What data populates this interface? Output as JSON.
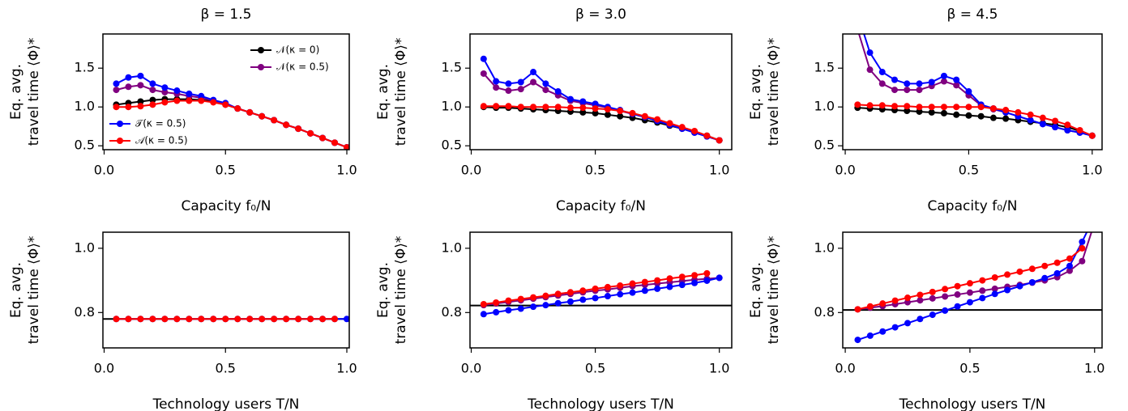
{
  "chart_data": [
    {
      "type": "line",
      "title": "β = 1.5",
      "xlabel": "Capacity f₀/N",
      "ylabel": [
        "Eq. avg.",
        "travel time ⟨Φ⟩*"
      ],
      "x": [
        0.05,
        0.1,
        0.15,
        0.2,
        0.25,
        0.3,
        0.35,
        0.4,
        0.45,
        0.5,
        0.55,
        0.6,
        0.65,
        0.7,
        0.75,
        0.8,
        0.85,
        0.9,
        0.95,
        1.0
      ],
      "series": [
        {
          "name": "𝒩(κ = 0)",
          "color": "#000000",
          "values": [
            1.03,
            1.05,
            1.07,
            1.09,
            1.1,
            1.1,
            1.1,
            1.09,
            1.07,
            1.03,
            0.98,
            0.93,
            0.88,
            0.83,
            0.77,
            0.72,
            0.66,
            0.6,
            0.54,
            0.48
          ]
        },
        {
          "name": "𝒩(κ = 0.5)",
          "color": "#800080",
          "values": [
            1.22,
            1.26,
            1.28,
            1.22,
            1.19,
            1.17,
            1.14,
            1.12,
            1.08,
            1.04,
            0.98,
            0.93,
            0.88,
            0.83,
            0.77,
            0.72,
            0.66,
            0.6,
            0.54,
            0.48
          ]
        },
        {
          "name": "𝒯(κ = 0.5)",
          "color": "#0000ff",
          "values": [
            1.3,
            1.38,
            1.4,
            1.3,
            1.25,
            1.21,
            1.17,
            1.14,
            1.09,
            1.05,
            0.98,
            0.93,
            0.88,
            0.83,
            0.77,
            0.72,
            0.66,
            0.6,
            0.54,
            0.48
          ]
        },
        {
          "name": "𝒜(κ = 0.5)",
          "color": "#ff0000",
          "values": [
            1.0,
            1.0,
            1.01,
            1.03,
            1.06,
            1.08,
            1.08,
            1.08,
            1.06,
            1.03,
            0.98,
            0.93,
            0.88,
            0.83,
            0.77,
            0.72,
            0.66,
            0.6,
            0.54,
            0.48
          ]
        }
      ],
      "xlim": [
        -0.005,
        1.01
      ],
      "xticks": [
        {
          "value": 0,
          "label": "0.0"
        },
        0.5,
        {
          "value": 1,
          "label": "1.0"
        }
      ],
      "ylim": [
        0.45,
        1.94
      ],
      "yticks": [
        0.5,
        {
          "value": 1,
          "label": "1.0"
        },
        1.5
      ]
    },
    {
      "type": "line",
      "title": "β = 3.0",
      "xlabel": "Capacity f₀/N",
      "ylabel": [
        "Eq. avg.",
        "travel time ⟨Φ⟩*"
      ],
      "x": [
        0.05,
        0.1,
        0.15,
        0.2,
        0.25,
        0.3,
        0.35,
        0.4,
        0.45,
        0.5,
        0.55,
        0.6,
        0.65,
        0.7,
        0.75,
        0.8,
        0.85,
        0.9,
        0.95,
        1.0
      ],
      "series": [
        {
          "color": "#000000",
          "values": [
            1.0,
            0.99,
            0.99,
            0.98,
            0.97,
            0.96,
            0.95,
            0.94,
            0.93,
            0.92,
            0.9,
            0.88,
            0.86,
            0.83,
            0.8,
            0.76,
            0.72,
            0.68,
            0.63,
            0.57
          ]
        },
        {
          "color": "#800080",
          "values": [
            1.43,
            1.25,
            1.21,
            1.23,
            1.32,
            1.22,
            1.15,
            1.08,
            1.05,
            1.02,
            0.99,
            0.95,
            0.91,
            0.87,
            0.82,
            0.77,
            0.72,
            0.67,
            0.62,
            0.57
          ]
        },
        {
          "color": "#0000ff",
          "values": [
            1.62,
            1.33,
            1.3,
            1.32,
            1.45,
            1.3,
            1.2,
            1.1,
            1.07,
            1.04,
            1.0,
            0.96,
            0.91,
            0.87,
            0.82,
            0.77,
            0.72,
            0.67,
            0.62,
            0.57
          ]
        },
        {
          "color": "#ff0000",
          "values": [
            1.01,
            1.01,
            1.01,
            1.0,
            1.0,
            1.0,
            1.0,
            0.99,
            0.99,
            0.98,
            0.97,
            0.95,
            0.92,
            0.88,
            0.84,
            0.79,
            0.74,
            0.69,
            0.63,
            0.57
          ]
        }
      ],
      "xlim": [
        -0.005,
        1.05
      ],
      "xticks": [
        {
          "value": 0,
          "label": "0.0"
        },
        0.5,
        {
          "value": 1,
          "label": "1.0"
        }
      ],
      "ylim": [
        0.45,
        1.94
      ],
      "yticks": [
        0.5,
        {
          "value": 1,
          "label": "1.0"
        },
        1.5
      ]
    },
    {
      "type": "line",
      "title": "β = 4.5",
      "xlabel": "Capacity f₀/N",
      "ylabel": [
        "Eq. avg.",
        "travel time ⟨Φ⟩*"
      ],
      "x": [
        0.05,
        0.1,
        0.15,
        0.2,
        0.25,
        0.3,
        0.35,
        0.4,
        0.45,
        0.5,
        0.55,
        0.6,
        0.65,
        0.7,
        0.75,
        0.8,
        0.85,
        0.9,
        0.95,
        1.0
      ],
      "series": [
        {
          "color": "#000000",
          "values": [
            0.99,
            0.98,
            0.97,
            0.96,
            0.95,
            0.94,
            0.93,
            0.92,
            0.9,
            0.89,
            0.88,
            0.86,
            0.85,
            0.83,
            0.81,
            0.79,
            0.77,
            0.74,
            0.69,
            0.63
          ]
        },
        {
          "color": "#800080",
          "values": [
            2.0,
            1.48,
            1.3,
            1.22,
            1.22,
            1.22,
            1.27,
            1.33,
            1.28,
            1.15,
            1.02,
            0.97,
            0.93,
            0.88,
            0.83,
            0.78,
            0.74,
            0.7,
            0.67,
            0.63
          ]
        },
        {
          "color": "#0000ff",
          "values": [
            2.2,
            1.7,
            1.45,
            1.35,
            1.3,
            1.3,
            1.32,
            1.4,
            1.35,
            1.2,
            1.03,
            0.98,
            0.93,
            0.88,
            0.83,
            0.78,
            0.74,
            0.7,
            0.67,
            0.63
          ]
        },
        {
          "color": "#ff0000",
          "values": [
            1.03,
            1.02,
            1.02,
            1.01,
            1.01,
            1.0,
            1.0,
            1.0,
            1.0,
            1.0,
            1.0,
            0.98,
            0.96,
            0.93,
            0.9,
            0.86,
            0.82,
            0.77,
            0.7,
            0.63
          ]
        }
      ],
      "xlim": [
        -0.01,
        1.04
      ],
      "xticks": [
        {
          "value": 0,
          "label": "0.0"
        },
        0.5,
        {
          "value": 1,
          "label": "1.0"
        }
      ],
      "ylim": [
        0.45,
        1.94
      ],
      "yticks": [
        0.5,
        {
          "value": 1,
          "label": "1.0"
        },
        1.5
      ]
    },
    {
      "type": "line",
      "xlabel": "Technology users T/N",
      "ylabel": [
        "Eq. avg.",
        "travel time ⟨Φ⟩*"
      ],
      "x": [
        0.05,
        0.1,
        0.15,
        0.2,
        0.25,
        0.3,
        0.35,
        0.4,
        0.45,
        0.5,
        0.55,
        0.6,
        0.65,
        0.7,
        0.75,
        0.8,
        0.85,
        0.9,
        0.95,
        1.0
      ],
      "hline": 0.78,
      "series": [
        {
          "color": "#0000ff",
          "values": [
            0.78,
            0.78,
            0.78,
            0.78,
            0.78,
            0.78,
            0.78,
            0.78,
            0.78,
            0.78,
            0.78,
            0.78,
            0.78,
            0.78,
            0.78,
            0.78,
            0.78,
            0.78,
            0.78,
            0.78
          ]
        },
        {
          "color": "#ff0000",
          "values": [
            0.78,
            0.78,
            0.78,
            0.78,
            0.78,
            0.78,
            0.78,
            0.78,
            0.78,
            0.78,
            0.78,
            0.78,
            0.78,
            0.78,
            0.78,
            0.78,
            0.78,
            0.78,
            0.78,
            null
          ]
        }
      ],
      "xlim": [
        -0.005,
        1.01
      ],
      "xticks": [
        {
          "value": 0,
          "label": "0.0"
        },
        0.5,
        {
          "value": 1,
          "label": "1.0"
        }
      ],
      "ylim": [
        0.69,
        1.05
      ],
      "yticks": [
        0.8,
        {
          "value": 1,
          "label": "1.0"
        }
      ]
    },
    {
      "type": "line",
      "xlabel": "Technology users T/N",
      "ylabel": [
        "Eq. avg.",
        "travel time ⟨Φ⟩*"
      ],
      "x": [
        0.05,
        0.1,
        0.15,
        0.2,
        0.25,
        0.3,
        0.35,
        0.4,
        0.45,
        0.5,
        0.55,
        0.6,
        0.65,
        0.7,
        0.75,
        0.8,
        0.85,
        0.9,
        0.95,
        1.0
      ],
      "hline": 0.822,
      "series": [
        {
          "color": "#800080",
          "values": [
            0.823,
            0.828,
            0.833,
            0.838,
            0.843,
            0.848,
            0.853,
            0.858,
            0.863,
            0.868,
            0.872,
            0.877,
            0.882,
            0.886,
            0.89,
            0.894,
            0.898,
            0.902,
            0.905,
            0.908
          ]
        },
        {
          "color": "#0000ff",
          "values": [
            0.795,
            0.801,
            0.807,
            0.812,
            0.818,
            0.823,
            0.829,
            0.834,
            0.84,
            0.845,
            0.851,
            0.857,
            0.862,
            0.868,
            0.874,
            0.88,
            0.886,
            0.892,
            0.899,
            0.908
          ]
        },
        {
          "color": "#ff0000",
          "values": [
            0.826,
            0.831,
            0.837,
            0.842,
            0.847,
            0.852,
            0.858,
            0.863,
            0.868,
            0.874,
            0.879,
            0.884,
            0.89,
            0.895,
            0.9,
            0.906,
            0.911,
            0.916,
            0.922,
            null
          ]
        }
      ],
      "xlim": [
        -0.005,
        1.05
      ],
      "xticks": [
        {
          "value": 0,
          "label": "0.0"
        },
        0.5,
        {
          "value": 1,
          "label": "1.0"
        }
      ],
      "ylim": [
        0.69,
        1.05
      ],
      "yticks": [
        0.8,
        {
          "value": 1,
          "label": "1.0"
        }
      ]
    },
    {
      "type": "line",
      "xlabel": "Technology users T/N",
      "ylabel": [
        "Eq. avg.",
        "travel time ⟨Φ⟩*"
      ],
      "x": [
        0.05,
        0.1,
        0.15,
        0.2,
        0.25,
        0.3,
        0.35,
        0.4,
        0.45,
        0.5,
        0.55,
        0.6,
        0.65,
        0.7,
        0.75,
        0.8,
        0.85,
        0.9,
        0.95,
        1.0
      ],
      "hline": 0.808,
      "series": [
        {
          "color": "#800080",
          "values": [
            0.81,
            0.815,
            0.82,
            0.826,
            0.832,
            0.838,
            0.844,
            0.85,
            0.856,
            0.862,
            0.868,
            0.874,
            0.88,
            0.886,
            0.893,
            0.9,
            0.91,
            0.93,
            0.96,
            1.08
          ]
        },
        {
          "color": "#0000ff",
          "values": [
            0.715,
            0.728,
            0.741,
            0.754,
            0.767,
            0.78,
            0.793,
            0.806,
            0.819,
            0.832,
            0.845,
            0.858,
            0.87,
            0.882,
            0.894,
            0.907,
            0.922,
            0.945,
            1.02,
            1.1
          ]
        },
        {
          "color": "#ff0000",
          "values": [
            0.81,
            0.819,
            0.828,
            0.837,
            0.846,
            0.855,
            0.864,
            0.873,
            0.882,
            0.891,
            0.9,
            0.909,
            0.918,
            0.927,
            0.936,
            0.945,
            0.955,
            0.968,
            1.0,
            null
          ]
        }
      ],
      "xlim": [
        -0.01,
        1.03
      ],
      "xticks": [
        {
          "value": 0,
          "label": "0.0"
        },
        0.5,
        {
          "value": 1,
          "label": "1.0"
        }
      ],
      "ylim": [
        0.69,
        1.05
      ],
      "yticks": [
        0.8,
        {
          "value": 1,
          "label": "1.0"
        }
      ]
    }
  ]
}
